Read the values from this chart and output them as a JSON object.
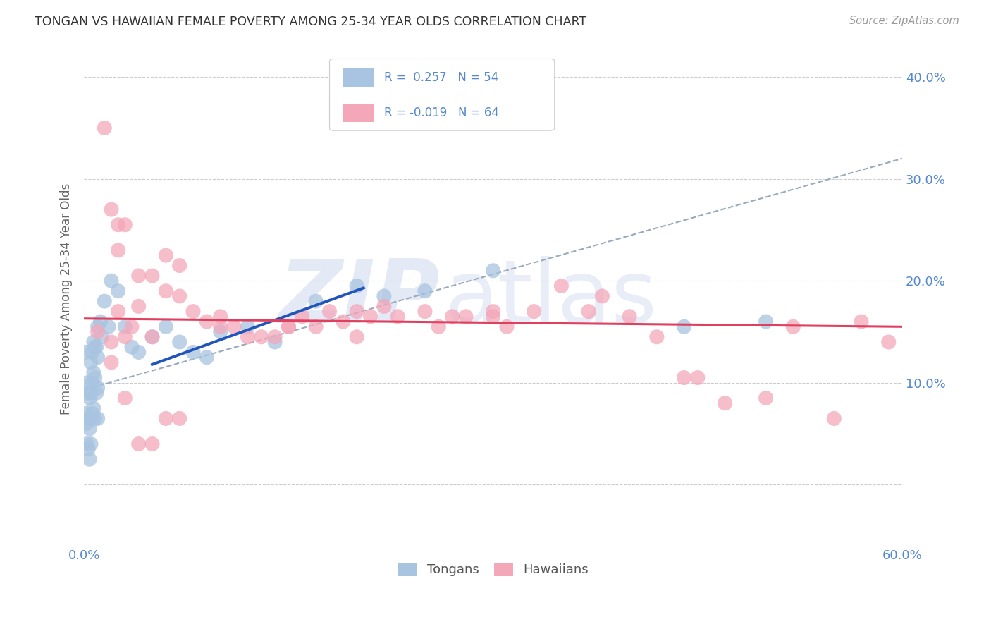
{
  "title": "TONGAN VS HAWAIIAN FEMALE POVERTY AMONG 25-34 YEAR OLDS CORRELATION CHART",
  "source": "Source: ZipAtlas.com",
  "ylabel": "Female Poverty Among 25-34 Year Olds",
  "xlim": [
    0.0,
    0.6
  ],
  "ylim": [
    -0.06,
    0.425
  ],
  "yticks": [
    0.0,
    0.1,
    0.2,
    0.3,
    0.4
  ],
  "ytick_labels": [
    "",
    "10.0%",
    "20.0%",
    "30.0%",
    "40.0%"
  ],
  "xticks": [
    0.0,
    0.1,
    0.2,
    0.3,
    0.4,
    0.5,
    0.6
  ],
  "xtick_labels": [
    "0.0%",
    "",
    "",
    "",
    "",
    "",
    "60.0%"
  ],
  "tongan_color": "#a8c4e0",
  "hawaiian_color": "#f4a7b9",
  "tongan_line_color": "#2255bb",
  "hawaiian_line_color": "#e04060",
  "dashed_line_color": "#99aabb",
  "background_color": "#ffffff",
  "grid_color": "#cccccc",
  "title_color": "#333333",
  "axis_label_color": "#5588cc",
  "watermark_color": "#ccd8ee",
  "tongan_x": [
    0.001,
    0.001,
    0.002,
    0.002,
    0.002,
    0.003,
    0.003,
    0.003,
    0.004,
    0.004,
    0.004,
    0.005,
    0.005,
    0.005,
    0.005,
    0.006,
    0.006,
    0.006,
    0.007,
    0.007,
    0.007,
    0.008,
    0.008,
    0.008,
    0.009,
    0.009,
    0.01,
    0.01,
    0.01,
    0.01,
    0.012,
    0.013,
    0.015,
    0.018,
    0.02,
    0.025,
    0.03,
    0.035,
    0.04,
    0.05,
    0.06,
    0.07,
    0.08,
    0.09,
    0.1,
    0.12,
    0.14,
    0.17,
    0.2,
    0.22,
    0.25,
    0.3,
    0.44,
    0.5
  ],
  "tongan_y": [
    0.13,
    0.07,
    0.1,
    0.06,
    0.04,
    0.09,
    0.065,
    0.035,
    0.085,
    0.055,
    0.025,
    0.12,
    0.09,
    0.065,
    0.04,
    0.13,
    0.1,
    0.07,
    0.14,
    0.11,
    0.075,
    0.135,
    0.105,
    0.065,
    0.135,
    0.09,
    0.155,
    0.125,
    0.095,
    0.065,
    0.16,
    0.145,
    0.18,
    0.155,
    0.2,
    0.19,
    0.155,
    0.135,
    0.13,
    0.145,
    0.155,
    0.14,
    0.13,
    0.125,
    0.15,
    0.155,
    0.14,
    0.18,
    0.195,
    0.185,
    0.19,
    0.21,
    0.155,
    0.16
  ],
  "hawaiian_x": [
    0.01,
    0.015,
    0.02,
    0.02,
    0.025,
    0.025,
    0.03,
    0.03,
    0.04,
    0.04,
    0.05,
    0.05,
    0.06,
    0.06,
    0.07,
    0.07,
    0.08,
    0.09,
    0.1,
    0.11,
    0.12,
    0.13,
    0.14,
    0.15,
    0.16,
    0.17,
    0.18,
    0.19,
    0.2,
    0.21,
    0.22,
    0.23,
    0.25,
    0.26,
    0.27,
    0.28,
    0.3,
    0.31,
    0.33,
    0.35,
    0.37,
    0.38,
    0.4,
    0.42,
    0.44,
    0.45,
    0.47,
    0.5,
    0.52,
    0.55,
    0.57,
    0.59,
    0.02,
    0.03,
    0.04,
    0.05,
    0.06,
    0.07,
    0.025,
    0.035,
    0.1,
    0.15,
    0.2,
    0.3
  ],
  "hawaiian_y": [
    0.15,
    0.35,
    0.27,
    0.14,
    0.255,
    0.23,
    0.145,
    0.255,
    0.205,
    0.175,
    0.205,
    0.145,
    0.225,
    0.19,
    0.215,
    0.185,
    0.17,
    0.16,
    0.165,
    0.155,
    0.145,
    0.145,
    0.145,
    0.155,
    0.165,
    0.155,
    0.17,
    0.16,
    0.145,
    0.165,
    0.175,
    0.165,
    0.17,
    0.155,
    0.165,
    0.165,
    0.17,
    0.155,
    0.17,
    0.195,
    0.17,
    0.185,
    0.165,
    0.145,
    0.105,
    0.105,
    0.08,
    0.085,
    0.155,
    0.065,
    0.16,
    0.14,
    0.12,
    0.085,
    0.04,
    0.04,
    0.065,
    0.065,
    0.17,
    0.155,
    0.155,
    0.155,
    0.17,
    0.165
  ],
  "blue_line_x": [
    0.05,
    0.205
  ],
  "blue_line_y_start": 0.118,
  "blue_line_y_end": 0.193,
  "dashed_line_x": [
    0.0,
    0.6
  ],
  "dashed_line_y_start": 0.093,
  "dashed_line_y_end": 0.32,
  "pink_line_x": [
    0.0,
    0.6
  ],
  "pink_line_y_start": 0.163,
  "pink_line_y_end": 0.155
}
